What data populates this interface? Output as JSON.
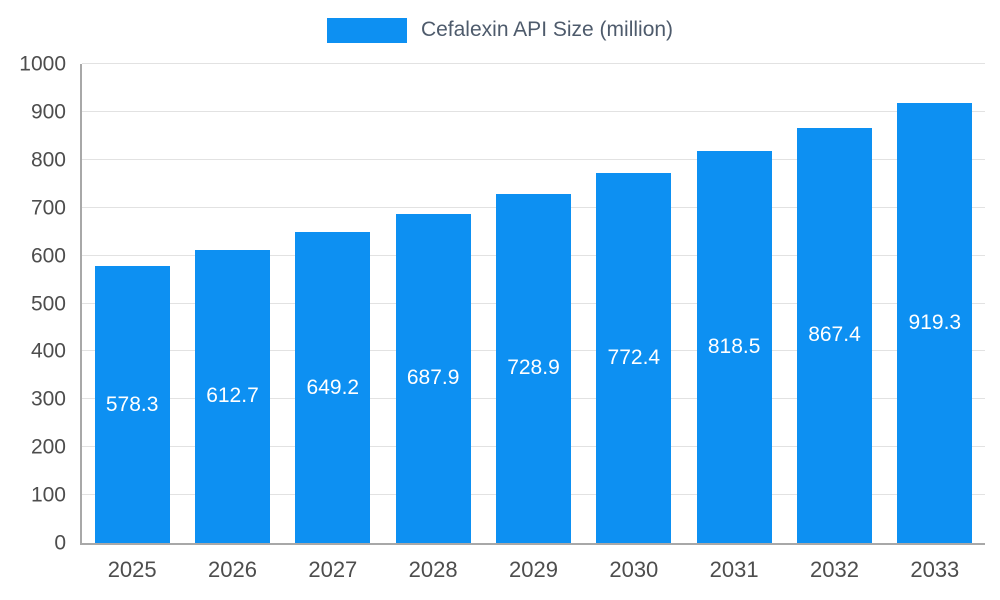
{
  "legend": {
    "label": "Cefalexin API Size (million)"
  },
  "chart_data": {
    "type": "bar",
    "title": "Cefalexin API Size (million)",
    "categories": [
      "2025",
      "2026",
      "2027",
      "2028",
      "2029",
      "2030",
      "2031",
      "2032",
      "2033"
    ],
    "values": [
      578.3,
      612.7,
      649.2,
      687.9,
      728.9,
      772.4,
      818.5,
      867.4,
      919.3
    ],
    "series_name": "Cefalexin API Size (million)",
    "xlabel": "",
    "ylabel": "",
    "ylim": [
      0,
      1000
    ],
    "ytick_step": 100,
    "grid": true,
    "legend_position": "top",
    "bar_color": "#0d90f2",
    "value_label_color": "#ffffff",
    "tick_label_color": "#4d4d4d"
  }
}
